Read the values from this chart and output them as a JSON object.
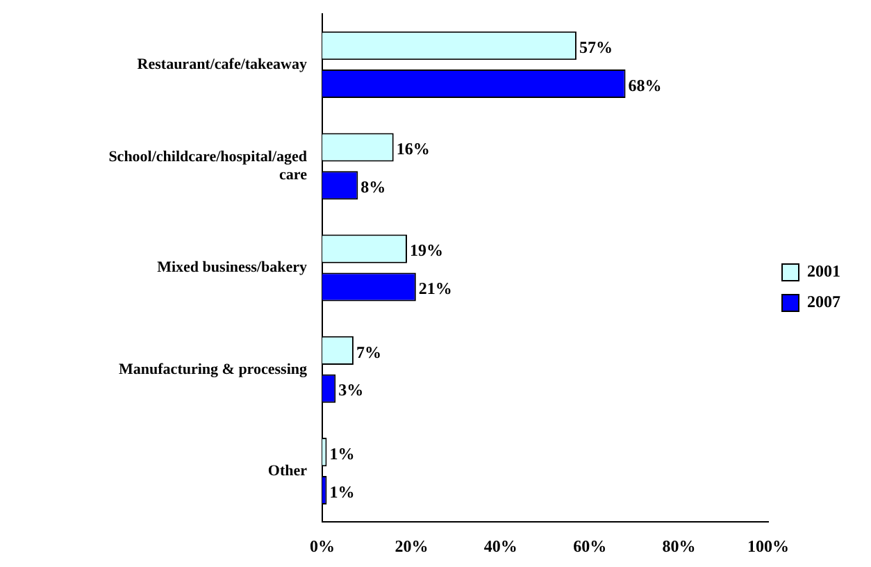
{
  "chart_data": {
    "type": "bar",
    "orientation": "horizontal",
    "categories": [
      "Restaurant/cafe/takeaway",
      "School/childcare/hospital/aged care",
      "Mixed business/bakery",
      "Manufacturing & processing",
      "Other"
    ],
    "series": [
      {
        "name": "2001",
        "color": "#ccffff",
        "values": [
          57,
          16,
          19,
          7,
          1
        ],
        "value_labels": [
          "57%",
          "16%",
          "19%",
          "7%",
          "1%"
        ]
      },
      {
        "name": "2007",
        "color": "#0000ff",
        "values": [
          68,
          8,
          21,
          3,
          1
        ],
        "value_labels": [
          "68%",
          "8%",
          "21%",
          "3%",
          "1%"
        ]
      }
    ],
    "xlim": [
      0,
      100
    ],
    "xticks": [
      {
        "value": 0,
        "label": "0%"
      },
      {
        "value": 20,
        "label": "20%"
      },
      {
        "value": 40,
        "label": "40%"
      },
      {
        "value": 60,
        "label": "60%"
      },
      {
        "value": 80,
        "label": "80%"
      },
      {
        "value": 100,
        "label": "100%"
      }
    ],
    "grid": false,
    "legend": "right"
  }
}
